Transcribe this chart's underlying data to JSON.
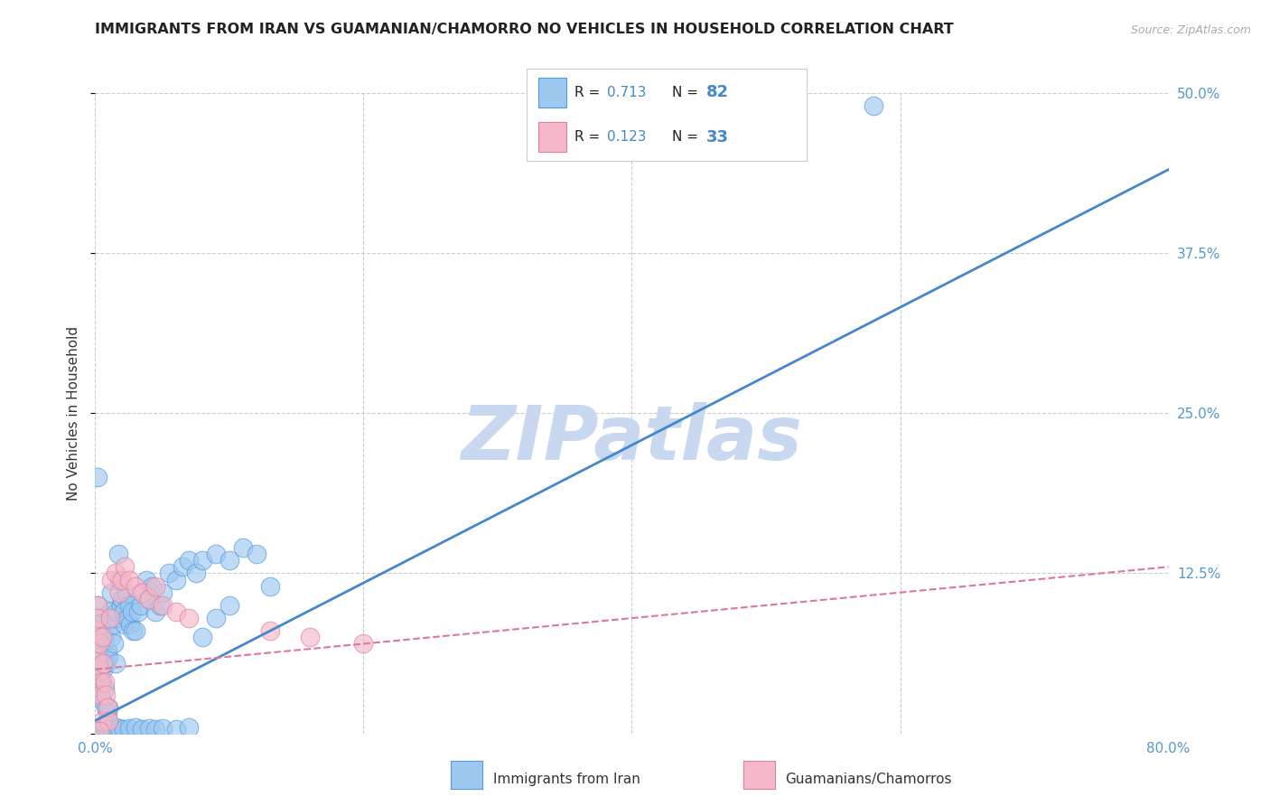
{
  "title": "IMMIGRANTS FROM IRAN VS GUAMANIAN/CHAMORRO NO VEHICLES IN HOUSEHOLD CORRELATION CHART",
  "source": "Source: ZipAtlas.com",
  "ylabel": "No Vehicles in Household",
  "xlim": [
    0.0,
    0.8
  ],
  "ylim": [
    0.0,
    0.5
  ],
  "xticks": [
    0.0,
    0.2,
    0.4,
    0.6,
    0.8
  ],
  "xticklabels": [
    "0.0%",
    "",
    "",
    "",
    "80.0%"
  ],
  "yticks": [
    0.0,
    0.125,
    0.25,
    0.375,
    0.5
  ],
  "yticklabels_right": [
    "",
    "12.5%",
    "25.0%",
    "37.5%",
    "50.0%"
  ],
  "series1_label": "Immigrants from Iran",
  "series1_R": "0.713",
  "series1_N": "82",
  "series1_color": "#9dc8f0",
  "series1_edge_color": "#5599dd",
  "series1_line_color": "#4488cc",
  "series2_label": "Guamanians/Chamorros",
  "series2_R": "0.123",
  "series2_N": "33",
  "series2_color": "#f5b8c8",
  "series2_edge_color": "#e080a0",
  "series2_line_color": "#dd7799",
  "legend_text_color": "#4488cc",
  "legend_label_color": "#222222",
  "watermark": "ZIPatlas",
  "watermark_color": "#c8d8f0",
  "background_color": "#ffffff",
  "grid_color": "#cccccc",
  "tick_label_color": "#5599cc",
  "blue_line_x": [
    0.0,
    0.8
  ],
  "blue_line_y": [
    0.01,
    0.44
  ],
  "pink_line_x": [
    0.0,
    0.8
  ],
  "pink_line_y": [
    0.05,
    0.13
  ],
  "scatter1_x": [
    0.001,
    0.002,
    0.002,
    0.003,
    0.003,
    0.003,
    0.004,
    0.004,
    0.005,
    0.005,
    0.006,
    0.006,
    0.007,
    0.007,
    0.008,
    0.008,
    0.009,
    0.009,
    0.01,
    0.01,
    0.011,
    0.012,
    0.012,
    0.013,
    0.014,
    0.015,
    0.015,
    0.016,
    0.017,
    0.018,
    0.019,
    0.02,
    0.021,
    0.022,
    0.023,
    0.024,
    0.025,
    0.026,
    0.027,
    0.028,
    0.03,
    0.032,
    0.034,
    0.036,
    0.038,
    0.04,
    0.042,
    0.045,
    0.048,
    0.05,
    0.055,
    0.06,
    0.065,
    0.07,
    0.075,
    0.08,
    0.09,
    0.1,
    0.11,
    0.12,
    0.003,
    0.005,
    0.007,
    0.009,
    0.012,
    0.015,
    0.018,
    0.021,
    0.025,
    0.03,
    0.035,
    0.04,
    0.045,
    0.05,
    0.06,
    0.07,
    0.08,
    0.09,
    0.1,
    0.13,
    0.58,
    0.002
  ],
  "scatter1_y": [
    0.08,
    0.1,
    0.065,
    0.09,
    0.06,
    0.045,
    0.085,
    0.03,
    0.07,
    0.04,
    0.05,
    0.025,
    0.075,
    0.035,
    0.055,
    0.02,
    0.065,
    0.015,
    0.06,
    0.02,
    0.095,
    0.11,
    0.075,
    0.085,
    0.07,
    0.09,
    0.055,
    0.095,
    0.14,
    0.12,
    0.1,
    0.105,
    0.095,
    0.085,
    0.11,
    0.09,
    0.1,
    0.085,
    0.095,
    0.08,
    0.08,
    0.095,
    0.1,
    0.11,
    0.12,
    0.105,
    0.115,
    0.095,
    0.1,
    0.11,
    0.125,
    0.12,
    0.13,
    0.135,
    0.125,
    0.135,
    0.14,
    0.135,
    0.145,
    0.14,
    0.002,
    0.003,
    0.004,
    0.003,
    0.004,
    0.005,
    0.004,
    0.003,
    0.004,
    0.005,
    0.003,
    0.004,
    0.003,
    0.004,
    0.003,
    0.005,
    0.075,
    0.09,
    0.1,
    0.115,
    0.49,
    0.2
  ],
  "scatter2_x": [
    0.001,
    0.001,
    0.002,
    0.002,
    0.003,
    0.003,
    0.004,
    0.004,
    0.005,
    0.005,
    0.006,
    0.007,
    0.008,
    0.009,
    0.01,
    0.011,
    0.012,
    0.015,
    0.018,
    0.02,
    0.022,
    0.025,
    0.03,
    0.035,
    0.04,
    0.045,
    0.05,
    0.06,
    0.07,
    0.13,
    0.16,
    0.2,
    0.003
  ],
  "scatter2_y": [
    0.06,
    0.08,
    0.1,
    0.09,
    0.05,
    0.07,
    0.04,
    0.03,
    0.075,
    0.01,
    0.055,
    0.04,
    0.03,
    0.02,
    0.01,
    0.09,
    0.12,
    0.125,
    0.11,
    0.12,
    0.13,
    0.12,
    0.115,
    0.11,
    0.105,
    0.115,
    0.1,
    0.095,
    0.09,
    0.08,
    0.075,
    0.07,
    0.002
  ]
}
